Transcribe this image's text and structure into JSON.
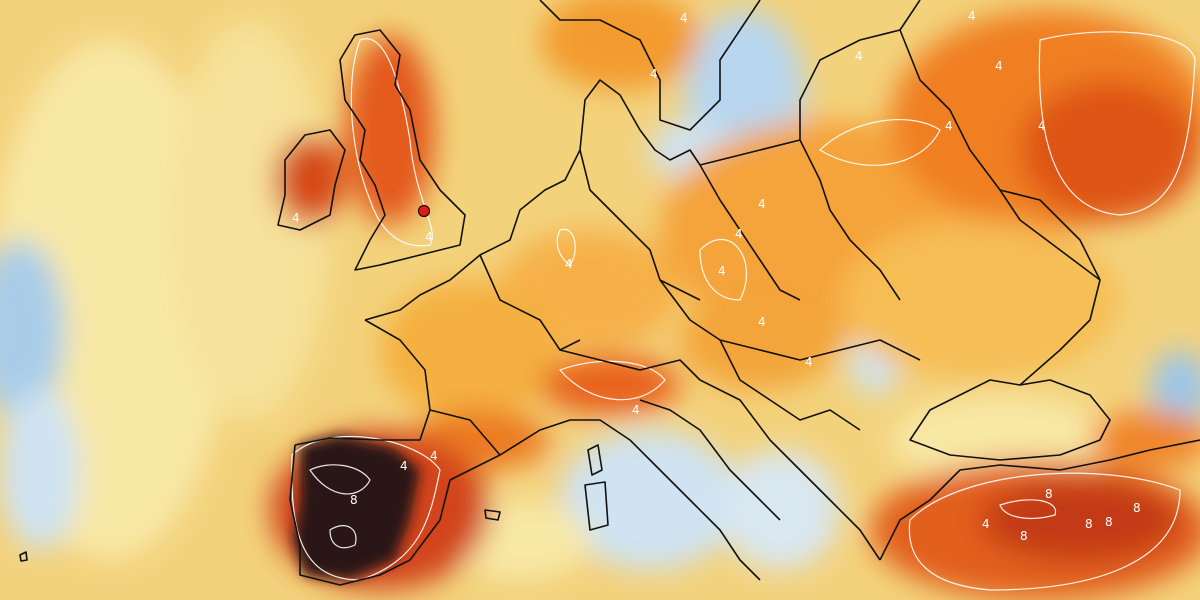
{
  "map": {
    "colors": {
      "ocean_base": "#f3d27c",
      "pale_yellow": "#f8e8a6",
      "light_blue": "#cfe3f2",
      "mid_blue": "#9cc6e8",
      "orange": "#f39b2f",
      "red_orange": "#e35a1a",
      "dark_red": "#b5310f",
      "darkest": "#2a1515",
      "coastline": "#111111",
      "contour": "#ffffff",
      "marker": "#e41a1a"
    },
    "contour_labels": [
      "4",
      "4",
      "4",
      "4",
      "4",
      "4",
      "4",
      "4",
      "4",
      "4",
      "4",
      "4",
      "4",
      "4",
      "4",
      "4",
      "4",
      "4",
      "4",
      "8",
      "8",
      "8",
      "8",
      "8",
      "8"
    ],
    "marker_count": 1
  }
}
